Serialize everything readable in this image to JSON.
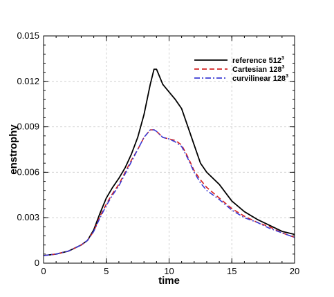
{
  "chart_data": {
    "type": "line",
    "title": "",
    "xlabel": "time",
    "ylabel": "enstrophy",
    "xlim": [
      0,
      20
    ],
    "ylim": [
      0,
      0.015
    ],
    "x_ticks": [
      0,
      5,
      10,
      15,
      20
    ],
    "x_tick_labels": [
      "0",
      "5",
      "10",
      "15",
      "20"
    ],
    "y_ticks": [
      0,
      0.003,
      0.006,
      0.009,
      0.012,
      0.015
    ],
    "y_tick_labels": [
      "0",
      "0.003",
      "0.006",
      "0.009",
      "0.012",
      "0.015"
    ],
    "grid": true,
    "legend_position": "top-right",
    "series": [
      {
        "name": "reference 512",
        "name_sup": "3",
        "color": "#000000",
        "dash": "solid",
        "x": [
          0,
          1,
          2,
          3,
          3.5,
          4,
          4.5,
          5,
          5.5,
          6,
          6.5,
          7,
          7.5,
          8,
          8.5,
          8.8,
          9,
          9.2,
          9.5,
          10,
          10.5,
          11,
          11.5,
          12,
          12.5,
          13,
          14,
          15,
          16,
          17,
          18,
          19,
          20
        ],
        "y": [
          0.0005,
          0.0006,
          0.0008,
          0.0012,
          0.0015,
          0.0022,
          0.0033,
          0.0043,
          0.005,
          0.0056,
          0.0063,
          0.0072,
          0.0083,
          0.0098,
          0.0118,
          0.0128,
          0.0128,
          0.0124,
          0.0118,
          0.0113,
          0.0108,
          0.0102,
          0.009,
          0.0078,
          0.0066,
          0.006,
          0.0052,
          0.0041,
          0.0034,
          0.0029,
          0.0025,
          0.0021,
          0.0019
        ]
      },
      {
        "name": "Cartesian 128",
        "name_sup": "3",
        "color": "#d42020",
        "dash": "dashed",
        "x": [
          0,
          1,
          2,
          3,
          3.5,
          4,
          4.5,
          5,
          5.5,
          6,
          6.5,
          7,
          7.5,
          8,
          8.5,
          8.8,
          9,
          9.5,
          10,
          10.5,
          11,
          11.5,
          12,
          12.5,
          13,
          14,
          15,
          16,
          17,
          18,
          19,
          20
        ],
        "y": [
          0.0005,
          0.0006,
          0.0008,
          0.0012,
          0.0015,
          0.0021,
          0.0031,
          0.0039,
          0.0046,
          0.0052,
          0.006,
          0.0068,
          0.0075,
          0.0083,
          0.0088,
          0.0088,
          0.0087,
          0.0083,
          0.0082,
          0.0081,
          0.0078,
          0.007,
          0.0061,
          0.0055,
          0.005,
          0.0043,
          0.0036,
          0.0031,
          0.0027,
          0.0024,
          0.002,
          0.0017
        ]
      },
      {
        "name": "curvilinear 128",
        "name_sup": "3",
        "color": "#3a3ad4",
        "dash": "dashdot",
        "x": [
          0,
          1,
          2,
          3,
          3.5,
          4,
          4.5,
          5,
          5.5,
          6,
          6.5,
          7,
          7.5,
          8,
          8.5,
          8.8,
          9,
          9.5,
          10,
          10.5,
          11,
          11.5,
          12,
          12.5,
          13,
          14,
          15,
          16,
          17,
          18,
          19,
          20
        ],
        "y": [
          0.0005,
          0.0006,
          0.0008,
          0.0012,
          0.0015,
          0.0021,
          0.003,
          0.0038,
          0.0045,
          0.0051,
          0.0059,
          0.0067,
          0.0075,
          0.0083,
          0.0088,
          0.0088,
          0.0087,
          0.0083,
          0.0082,
          0.008,
          0.0077,
          0.0069,
          0.006,
          0.0053,
          0.0048,
          0.0042,
          0.0035,
          0.003,
          0.0027,
          0.0023,
          0.002,
          0.0017
        ]
      }
    ]
  }
}
